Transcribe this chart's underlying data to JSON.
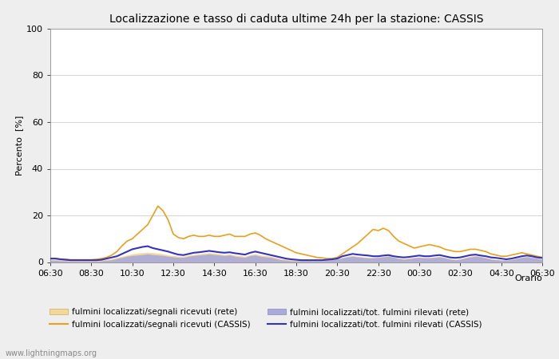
{
  "title": "Localizzazione e tasso di caduta ultime 24h per la stazione: CASSIS",
  "ylabel": "Percento  [%]",
  "xlabel": "Orario",
  "ylim": [
    0,
    100
  ],
  "yticks": [
    0,
    20,
    40,
    60,
    80,
    100
  ],
  "background_color": "#eeeeee",
  "plot_bg_color": "#ffffff",
  "watermark": "www.lightningmaps.org",
  "x_labels": [
    "06:30",
    "08:30",
    "10:30",
    "12:30",
    "14:30",
    "16:30",
    "18:30",
    "20:30",
    "22:30",
    "00:30",
    "02:30",
    "04:30",
    "06:30"
  ],
  "cassis_line_color": "#e8a020",
  "cassis_fill_color": "#f5d898",
  "rete_line_color": "#3333bb",
  "rete_fill_color": "#aaaadd",
  "legend_labels": [
    "fulmini localizzati/segnali ricevuti (rete)",
    "fulmini localizzati/segnali ricevuti (CASSIS)",
    "fulmini localizzati/tot. fulmini rilevati (rete)",
    "fulmini localizzati/tot. fulmini rilevati (CASSIS)"
  ],
  "cassis_signal_data": [
    1.5,
    1.5,
    1.2,
    1.2,
    1.0,
    1.0,
    1.0,
    1.0,
    1.0,
    1.2,
    1.5,
    2.0,
    3.0,
    4.5,
    7.0,
    9.0,
    10.0,
    12.0,
    14.0,
    16.0,
    20.0,
    24.0,
    22.0,
    18.0,
    12.0,
    10.5,
    10.0,
    11.0,
    11.5,
    11.0,
    11.0,
    11.5,
    11.0,
    11.0,
    11.5,
    12.0,
    11.0,
    11.0,
    11.0,
    12.0,
    12.5,
    11.5,
    10.0,
    9.0,
    8.0,
    7.0,
    6.0,
    5.0,
    4.0,
    3.5,
    3.0,
    2.5,
    2.0,
    1.8,
    1.5,
    1.5,
    2.0,
    3.5,
    5.0,
    6.5,
    8.0,
    10.0,
    12.0,
    14.0,
    13.5,
    14.5,
    13.5,
    11.0,
    9.0,
    8.0,
    7.0,
    6.0,
    6.5,
    7.0,
    7.5,
    7.0,
    6.5,
    5.5,
    5.0,
    4.5,
    4.5,
    5.0,
    5.5,
    5.5,
    5.0,
    4.5,
    3.5,
    3.0,
    2.5,
    2.5,
    3.0,
    3.5,
    4.0,
    3.5,
    3.0,
    2.5,
    2.0
  ],
  "cassis_tot_data": [
    1.5,
    1.5,
    1.2,
    1.0,
    0.8,
    0.8,
    0.8,
    0.8,
    0.8,
    0.8,
    1.0,
    1.5,
    2.0,
    2.5,
    3.5,
    4.5,
    5.5,
    6.0,
    6.5,
    6.8,
    6.0,
    5.5,
    5.0,
    4.5,
    3.8,
    3.2,
    3.0,
    3.5,
    4.0,
    4.2,
    4.5,
    4.8,
    4.5,
    4.2,
    4.0,
    4.2,
    3.8,
    3.5,
    3.2,
    4.0,
    4.5,
    4.0,
    3.5,
    3.0,
    2.5,
    2.0,
    1.5,
    1.2,
    1.0,
    0.8,
    0.8,
    0.8,
    0.8,
    0.8,
    1.0,
    1.2,
    1.5,
    2.5,
    3.0,
    3.5,
    3.2,
    3.0,
    2.8,
    2.5,
    2.5,
    2.8,
    3.0,
    2.5,
    2.2,
    2.0,
    2.2,
    2.5,
    2.8,
    2.5,
    2.5,
    2.8,
    3.0,
    2.5,
    2.0,
    1.8,
    2.0,
    2.5,
    3.0,
    3.2,
    2.8,
    2.5,
    2.0,
    1.8,
    1.5,
    1.2,
    1.5,
    2.0,
    2.5,
    2.8,
    2.5,
    2.0,
    1.8
  ],
  "rete_signal_data": [
    1.2,
    1.2,
    1.0,
    1.0,
    0.8,
    0.8,
    0.8,
    0.8,
    0.8,
    0.8,
    1.0,
    1.2,
    1.5,
    2.0,
    2.5,
    3.0,
    3.5,
    3.8,
    4.0,
    4.2,
    4.0,
    3.8,
    3.5,
    3.0,
    2.8,
    2.5,
    2.5,
    3.0,
    3.2,
    3.5,
    3.8,
    4.0,
    3.8,
    3.5,
    3.2,
    3.5,
    3.0,
    2.8,
    2.5,
    3.2,
    3.5,
    3.0,
    2.8,
    2.5,
    2.0,
    1.5,
    1.2,
    1.0,
    0.8,
    0.8,
    0.8,
    0.8,
    0.8,
    0.8,
    1.0,
    1.2,
    1.5,
    2.0,
    2.5,
    2.8,
    2.5,
    2.2,
    2.0,
    2.0,
    2.2,
    2.5,
    2.8,
    2.2,
    1.8,
    1.5,
    1.8,
    2.0,
    2.2,
    2.0,
    2.0,
    2.2,
    2.5,
    2.0,
    1.5,
    1.2,
    1.5,
    2.0,
    2.5,
    2.8,
    2.5,
    2.0,
    1.5,
    1.2,
    1.0,
    1.0,
    1.2,
    1.8,
    2.2,
    2.5,
    2.2,
    1.8,
    1.5
  ],
  "rete_tot_data": [
    0.8,
    0.8,
    0.5,
    0.5,
    0.3,
    0.3,
    0.3,
    0.3,
    0.3,
    0.3,
    0.5,
    0.8,
    1.0,
    1.5,
    2.0,
    2.5,
    2.8,
    3.0,
    3.2,
    3.5,
    3.2,
    3.0,
    2.8,
    2.5,
    2.2,
    2.0,
    2.0,
    2.5,
    2.8,
    3.0,
    3.2,
    3.5,
    3.2,
    3.0,
    2.8,
    3.0,
    2.5,
    2.2,
    2.0,
    2.8,
    3.0,
    2.5,
    2.2,
    2.0,
    1.5,
    1.0,
    0.8,
    0.5,
    0.5,
    0.5,
    0.5,
    0.5,
    0.5,
    0.5,
    0.8,
    1.0,
    1.2,
    1.8,
    2.2,
    2.5,
    2.2,
    2.0,
    1.8,
    1.8,
    2.0,
    2.2,
    2.5,
    2.0,
    1.5,
    1.2,
    1.5,
    1.8,
    2.0,
    1.8,
    1.8,
    2.0,
    2.2,
    1.8,
    1.2,
    1.0,
    1.2,
    1.8,
    2.2,
    2.5,
    2.2,
    1.8,
    1.2,
    1.0,
    0.8,
    0.8,
    1.0,
    1.5,
    2.0,
    2.2,
    2.0,
    1.5,
    1.2
  ]
}
